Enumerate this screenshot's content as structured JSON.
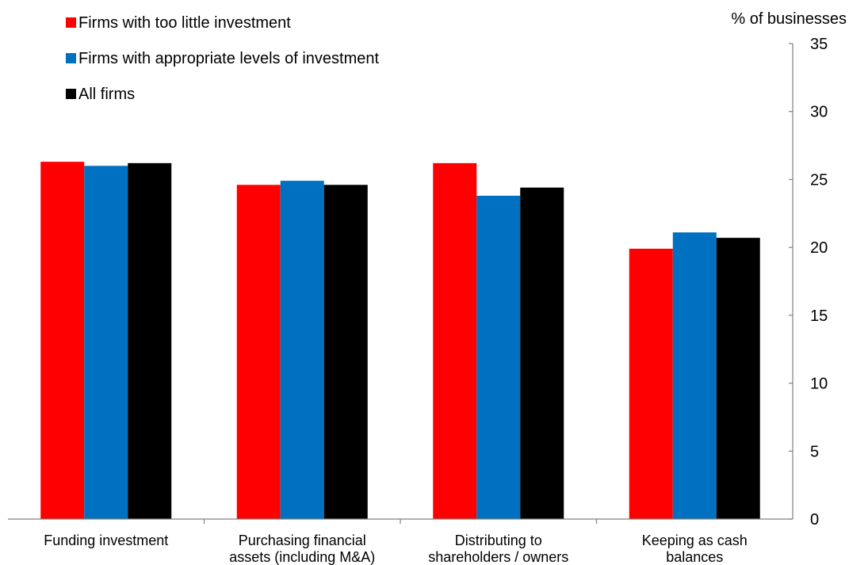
{
  "chart_data": {
    "type": "bar",
    "unit_label": "% of businesses",
    "categories": [
      [
        "Funding investment"
      ],
      [
        "Purchasing financial",
        "assets (including M&A)"
      ],
      [
        "Distributing to",
        "shareholders / owners"
      ],
      [
        "Keeping as cash",
        "balances"
      ]
    ],
    "series": [
      {
        "name": "Firms with too little investment",
        "color": "#ff0000",
        "values": [
          26.3,
          24.6,
          26.2,
          19.9
        ]
      },
      {
        "name": "Firms with appropriate levels of investment",
        "color": "#0070c0",
        "values": [
          26.0,
          24.9,
          23.8,
          21.1
        ]
      },
      {
        "name": "All firms",
        "color": "#000000",
        "values": [
          26.2,
          24.6,
          24.4,
          20.7
        ]
      }
    ],
    "y_axis": {
      "position": "right",
      "min": 0,
      "max": 35,
      "ticks": [
        0,
        5,
        10,
        15,
        20,
        25,
        30,
        35
      ]
    },
    "grid": false,
    "legend_position": "top-left"
  }
}
